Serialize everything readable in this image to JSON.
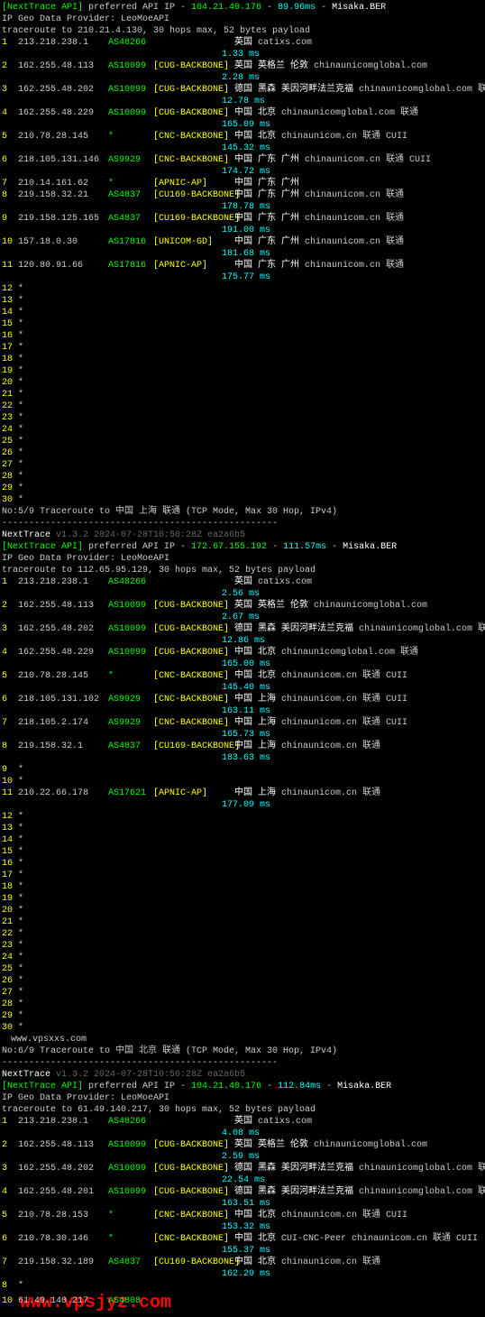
{
  "trace1": {
    "header": {
      "api_label": "[NextTrace API]",
      "preferred": " preferred API IP - ",
      "ip": "104.21.40.176",
      "sep": " - ",
      "timing": "89.96ms",
      "sep2": " - ",
      "misaka": "Misaka.BER"
    },
    "provider": "IP Geo Data Provider: LeoMoeAPI",
    "cmd": "traceroute to 210.21.4.130, 30 hops max, 52 bytes payload",
    "hops": [
      {
        "n": "1",
        "ip": "213.218.238.1",
        "asn": "AS48266",
        "label": "",
        "loc": "英国",
        "dom": "   catixs.com",
        "lat": "1.33 ms"
      },
      {
        "n": "2",
        "ip": "162.255.48.113",
        "asn": "AS10099",
        "label": "[CUG-BACKBONE]",
        "loc": "英国 英格兰 伦敦",
        "dom": "  chinaunicomglobal.com",
        "lat": "2.28 ms"
      },
      {
        "n": "3",
        "ip": "162.255.48.202",
        "asn": "AS10099",
        "label": "[CUG-BACKBONE]",
        "loc": "德国 黑森 美因河畔法兰克福",
        "dom": "  chinaunicomglobal.com  联通",
        "lat": "12.78 ms"
      },
      {
        "n": "4",
        "ip": "162.255.48.229",
        "asn": "AS10099",
        "label": "[CUG-BACKBONE]",
        "loc": "中国 北京",
        "dom": "  chinaunicomglobal.com  联通",
        "lat": "165.09 ms"
      },
      {
        "n": "5",
        "ip": "210.78.28.145",
        "asn": "*",
        "label": "[CNC-BACKBONE]",
        "loc": "中国 北京",
        "dom": "  chinaunicom.cn  联通 CUII",
        "lat": "145.32 ms"
      },
      {
        "n": "6",
        "ip": "218.105.131.146",
        "asn": "AS9929",
        "label": "[CNC-BACKBONE]",
        "loc": "中国 广东 广州",
        "dom": "  chinaunicom.cn  联通 CUII",
        "lat": "174.72 ms"
      },
      {
        "n": "7",
        "ip": "210.14.161.62",
        "asn": "*",
        "label": "[APNIC-AP]",
        "loc": "中国 广东 广州",
        "dom": "",
        "lat": ""
      },
      {
        "n": "8",
        "ip": "219.158.32.21",
        "asn": "AS4837",
        "label": "[CU169-BACKBONE]",
        "loc": "中国 广东 广州",
        "dom": "  chinaunicom.cn  联通",
        "lat": "178.78 ms"
      },
      {
        "n": "9",
        "ip": "219.158.125.165",
        "asn": "AS4837",
        "label": "[CU169-BACKBONE]",
        "loc": "中国 广东 广州",
        "dom": "  chinaunicom.cn  联通",
        "lat": "191.00 ms"
      },
      {
        "n": "10",
        "ip": "157.18.0.30",
        "asn": "AS17816",
        "label": "[UNICOM-GD]",
        "loc": "中国 广东 广州",
        "dom": "  chinaunicom.cn  联通",
        "lat": "181.68 ms"
      },
      {
        "n": "11",
        "ip": "120.80.91.66",
        "asn": "AS17816",
        "label": "[APNIC-AP]",
        "loc": "中国 广东 广州",
        "dom": "  chinaunicom.cn  联通",
        "lat": "175.77 ms"
      }
    ],
    "stars": [
      "12",
      "13",
      "14",
      "15",
      "16",
      "17",
      "18",
      "19",
      "20",
      "21",
      "22",
      "23",
      "24",
      "25",
      "26",
      "27",
      "28",
      "29",
      "30"
    ]
  },
  "trace2": {
    "title": "No:5/9 Traceroute to 中国 上海 联通 (TCP Mode, Max 30 Hop, IPv4)",
    "dashes": "---------------------------------------------------",
    "nexttrace": "NextTrace",
    "version": " v1.3.2 2024-07-28T10:50:28Z ea2a6b5",
    "header": {
      "api_label": "[NextTrace API]",
      "preferred": " preferred API IP - ",
      "ip": "172.67.155.192",
      "sep": " - ",
      "timing": "111.57ms",
      "sep2": " - ",
      "misaka": "Misaka.BER"
    },
    "provider": "IP Geo Data Provider: LeoMoeAPI",
    "cmd": "traceroute to 112.65.95.129, 30 hops max, 52 bytes payload",
    "hops": [
      {
        "n": "1",
        "ip": "213.218.238.1",
        "asn": "AS48266",
        "label": "",
        "loc": "英国",
        "dom": "   catixs.com",
        "lat": "2.56 ms"
      },
      {
        "n": "2",
        "ip": "162.255.48.113",
        "asn": "AS10099",
        "label": "[CUG-BACKBONE]",
        "loc": "英国 英格兰 伦敦",
        "dom": "  chinaunicomglobal.com",
        "lat": "2.67 ms"
      },
      {
        "n": "3",
        "ip": "162.255.48.202",
        "asn": "AS10099",
        "label": "[CUG-BACKBONE]",
        "loc": "德国 黑森 美因河畔法兰克福",
        "dom": "  chinaunicomglobal.com  联通",
        "lat": "12.86 ms"
      },
      {
        "n": "4",
        "ip": "162.255.48.229",
        "asn": "AS10099",
        "label": "[CUG-BACKBONE]",
        "loc": "中国 北京",
        "dom": "  chinaunicomglobal.com  联通",
        "lat": "165.00 ms"
      },
      {
        "n": "5",
        "ip": "210.78.28.145",
        "asn": "*",
        "label": "[CNC-BACKBONE]",
        "loc": "中国 北京",
        "dom": "  chinaunicom.cn  联通 CUII",
        "lat": "145.40 ms"
      },
      {
        "n": "6",
        "ip": "218.105.131.102",
        "asn": "AS9929",
        "label": "[CNC-BACKBONE]",
        "loc": "中国 上海",
        "dom": "  chinaunicom.cn  联通 CUII",
        "lat": "163.11 ms"
      },
      {
        "n": "7",
        "ip": "218.105.2.174",
        "asn": "AS9929",
        "label": "[CNC-BACKBONE]",
        "loc": "中国 上海",
        "dom": "  chinaunicom.cn  联通 CUII",
        "lat": "165.73 ms"
      },
      {
        "n": "8",
        "ip": "219.158.32.1",
        "asn": "AS4837",
        "label": "[CU169-BACKBONE]",
        "loc": "中国 上海",
        "dom": "  chinaunicom.cn  联通",
        "lat": "183.63 ms"
      }
    ],
    "stars1": [
      "9",
      "10"
    ],
    "hop11": {
      "n": "11",
      "ip": "210.22.66.178",
      "asn": "AS17621",
      "label": "[APNIC-AP]",
      "loc": "中国 上海",
      "dom": "  chinaunicom.cn  联通",
      "lat": "177.09 ms"
    },
    "stars2": [
      "12",
      "13",
      "14",
      "15",
      "16",
      "17",
      "18",
      "19",
      "20",
      "21",
      "22",
      "23",
      "24",
      "25",
      "26",
      "27",
      "28",
      "29",
      "30"
    ]
  },
  "watermark1": "www.vpsxxs.com",
  "trace3": {
    "title": "No:6/9 Traceroute to 中国 北京 联通 (TCP Mode, Max 30 Hop, IPv4)",
    "dashes": "---------------------------------------------------",
    "nexttrace": "NextTrace",
    "version": " v1.3.2 2024-07-28T10:50:28Z ea2a6b5",
    "header": {
      "api_label": "[NextTrace API]",
      "preferred": " preferred API IP - ",
      "ip": "104.21.40.176",
      "sep": " - ",
      "timing": "112.84ms",
      "sep2": " - ",
      "misaka": "Misaka.BER"
    },
    "provider": "IP Geo Data Provider: LeoMoeAPI",
    "cmd": "traceroute to 61.49.140.217, 30 hops max, 52 bytes payload",
    "hops": [
      {
        "n": "1",
        "ip": "213.218.238.1",
        "asn": "AS48266",
        "label": "",
        "loc": "英国",
        "dom": "   catixs.com",
        "lat": "4.08 ms"
      },
      {
        "n": "2",
        "ip": "162.255.48.113",
        "asn": "AS10099",
        "label": "[CUG-BACKBONE]",
        "loc": "英国 英格兰 伦敦",
        "dom": "  chinaunicomglobal.com",
        "lat": "2.59 ms"
      },
      {
        "n": "3",
        "ip": "162.255.48.202",
        "asn": "AS10099",
        "label": "[CUG-BACKBONE]",
        "loc": "德国 黑森 美因河畔法兰克福",
        "dom": "  chinaunicomglobal.com  联通",
        "lat": "22.54 ms"
      },
      {
        "n": "4",
        "ip": "162.255.48.201",
        "asn": "AS10099",
        "label": "[CUG-BACKBONE]",
        "loc": "德国 黑森 美因河畔法兰克福",
        "dom": "  chinaunicomglobal.com  联通",
        "lat": "163.51 ms"
      },
      {
        "n": "5",
        "ip": "210.78.28.153",
        "asn": "*",
        "label": "[CNC-BACKBONE]",
        "loc": "中国 北京",
        "dom": "  chinaunicom.cn  联通 CUII",
        "lat": "153.32 ms"
      },
      {
        "n": "6",
        "ip": "210.78.30.146",
        "asn": "*",
        "label": "[CNC-BACKBONE]",
        "loc": "中国 北京",
        "dom": "  CUI-CNC-Peer chinaunicom.cn  联通 CUII",
        "lat": "155.37 ms"
      },
      {
        "n": "7",
        "ip": "219.158.32.189",
        "asn": "AS4837",
        "label": "[CU169-BACKBONE]",
        "loc": "中国 北京",
        "dom": "  chinaunicom.cn  联通",
        "lat": "162.29 ms"
      }
    ],
    "star8": "8",
    "hop10": {
      "n": "10",
      "ip": "61.49.140.217",
      "asn": "AS4808",
      "label": "",
      "loc": "",
      "dom": "",
      "lat": ""
    }
  },
  "watermark2": "www.vpsjyz.com"
}
